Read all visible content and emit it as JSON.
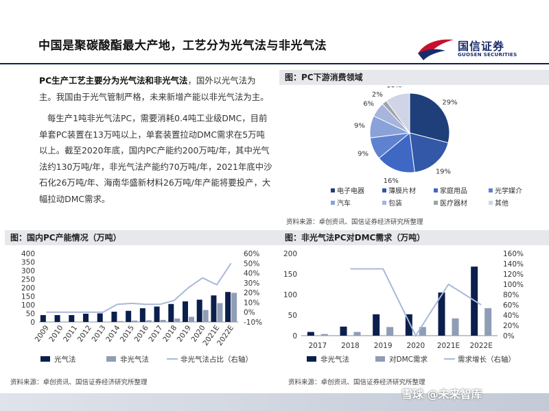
{
  "header": {
    "title": "中国是聚碳酸酯最大产地，工艺分为光气法与非光气法",
    "logo_name": "国信证券",
    "logo_en": "GUOSEN SECURITIES"
  },
  "intro": {
    "p1_bold": "PC生产工艺主要分为光气法和非光气法",
    "p1_rest": "，国外以光气法为主。我国由于光气管制严格，未来新增产能以非光气法为主。",
    "p2": "每生产1吨非光气法PC，需要消耗0.4吨工业级DMC，目前单套PC装置在13万吨以上，单套装置拉动DMC需求在5万吨以上。截至2020年底，国内PC产能约200万吨/年，其中光气法约130万吨/年，非光气法产能约70万吨/年，2021年底中沙石化26万吨/年、海南华盛新材料26万吨/年产能将要投产，大幅拉动DMC需求。"
  },
  "panels": {
    "pie_title": "图：PC下游消费领域",
    "pie_source": "资料来源：卓创资讯、国信证券经济研究所整理",
    "cap_title": "图：国内PC产能情况（万吨）",
    "cap_source": "资料来源：卓创资讯、国信证券经济研究所整理",
    "dmc_title": "图：非光气法PC对DMC需求（万吨）",
    "dmc_source": "资料来源：卓创资讯、国信证券经济研究所整理"
  },
  "watermark": "雪球 @未来智库",
  "chart_data": [
    {
      "type": "pie",
      "categories": [
        "电子电器",
        "薄膜片材",
        "家庭用品",
        "光学媒介",
        "汽车",
        "包装",
        "医疗器材",
        "其他"
      ],
      "values": [
        29,
        19,
        16,
        9,
        9,
        6,
        2,
        10
      ],
      "value_labels": [
        "29%",
        "19%",
        "16%",
        "9%",
        "9%",
        "6%",
        "2%",
        "10%"
      ],
      "colors": [
        "#1f3f7a",
        "#3358a8",
        "#3e68c4",
        "#5f82d0",
        "#8aa2da",
        "#a6b4de",
        "#9ea3ad",
        "#cfd4e6"
      ],
      "legend_position": "bottom"
    },
    {
      "type": "bar",
      "categories": [
        "2009",
        "2010",
        "2011",
        "2012",
        "2013",
        "2014",
        "2015",
        "2016",
        "2017",
        "2018",
        "2019",
        "2020",
        "2021E",
        "2022E"
      ],
      "series": [
        {
          "name": "光气法",
          "kind": "bar",
          "color": "#0b1f4d",
          "values": [
            40,
            40,
            40,
            48,
            50,
            60,
            65,
            80,
            90,
            105,
            120,
            130,
            155,
            175
          ]
        },
        {
          "name": "非光气法",
          "kind": "bar",
          "color": "#8f9db5",
          "values": [
            0,
            0,
            0,
            2,
            2,
            5,
            8,
            10,
            12,
            20,
            30,
            70,
            110,
            170
          ]
        },
        {
          "name": "非光气法占比（右轴）",
          "kind": "line",
          "axis": "right",
          "color": "#a8b8dc",
          "values": [
            0,
            0,
            0,
            0,
            0,
            8,
            9,
            8,
            8,
            12,
            25,
            35,
            28,
            50
          ]
        }
      ],
      "y_left": {
        "min": 0,
        "max": 400,
        "ticks": [
          "0",
          "50",
          "100",
          "150",
          "200",
          "250",
          "300",
          "350",
          "400"
        ]
      },
      "y_right": {
        "min": -10,
        "max": 60,
        "ticks": [
          "-10%",
          "0%",
          "10%",
          "20%",
          "30%",
          "40%",
          "50%",
          "60%"
        ]
      },
      "legend_position": "bottom"
    },
    {
      "type": "bar",
      "categories": [
        "2017",
        "2018",
        "2019",
        "2020",
        "2021E",
        "2022E"
      ],
      "series": [
        {
          "name": "非光气法",
          "kind": "bar",
          "color": "#0b1f4d",
          "values": [
            9,
            22,
            52,
            52,
            105,
            168
          ]
        },
        {
          "name": "对DMC需求",
          "kind": "bar",
          "color": "#8f9db5",
          "values": [
            4,
            9,
            21,
            21,
            42,
            67
          ]
        },
        {
          "name": "需求增长（右轴）",
          "kind": "line",
          "axis": "right",
          "color": "#a8b8dc",
          "values": [
            null,
            130,
            130,
            0,
            100,
            60
          ]
        }
      ],
      "y_left": {
        "min": 0,
        "max": 200,
        "ticks": [
          "0",
          "50",
          "100",
          "150",
          "200"
        ]
      },
      "y_right": {
        "min": 0,
        "max": 160,
        "ticks": [
          "0%",
          "20%",
          "40%",
          "60%",
          "80%",
          "100%",
          "120%",
          "140%",
          "160%"
        ]
      },
      "legend_position": "bottom"
    }
  ]
}
